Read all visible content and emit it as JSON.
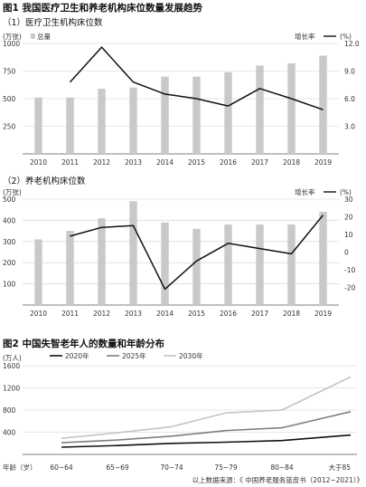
{
  "figure": {
    "title": "图1  我国医疗卫生和养老机构床位数量发展趋势",
    "source": "以上数据来源：《 中国养老服务蓝皮书（2012~2021）》"
  },
  "colors": {
    "bar": "#c9c9c9",
    "line": "#111111",
    "grid": "#cfcfcf",
    "series_2020": "#111111",
    "series_2025": "#7f7f7f",
    "series_2030": "#c4c4c4"
  },
  "chart_data": [
    {
      "type": "bar+line",
      "subtitle": "（1）医疗卫生机构床位数",
      "y_unit_left": "(万张)",
      "bar_legend": "总量",
      "line_legend": "增长率",
      "y_unit_right": "(%)",
      "categories": [
        "2010",
        "2011",
        "2012",
        "2013",
        "2014",
        "2015",
        "2016",
        "2017",
        "2018",
        "2019"
      ],
      "bars": [
        510,
        510,
        590,
        600,
        700,
        700,
        740,
        800,
        820,
        890
      ],
      "line": [
        7.8,
        11.6,
        7.8,
        6.5,
        6.0,
        5.2,
        7.1,
        6.0,
        4.8
      ],
      "line_x_start": 1,
      "ylim_left": [
        0,
        1000
      ],
      "yticks_left": [
        250,
        500,
        750,
        1000
      ],
      "ylim_right": [
        0,
        12
      ],
      "yticks_right": [
        3.0,
        6.0,
        9.0,
        12.0
      ],
      "yticklabels_right": [
        "3.0",
        "6.0",
        "9.0",
        "12.0"
      ]
    },
    {
      "type": "bar+line",
      "subtitle": "（2）养老机构床位数",
      "y_unit_left": "(万张)",
      "line_legend": "增长率",
      "y_unit_right": "(%)",
      "categories": [
        "2010",
        "2011",
        "2012",
        "2013",
        "2014",
        "2015",
        "2016",
        "2017",
        "2018",
        "2019"
      ],
      "bars": [
        310,
        350,
        410,
        490,
        390,
        360,
        380,
        380,
        380,
        440
      ],
      "line": [
        9,
        14,
        15,
        -21,
        -5,
        5,
        2,
        -1,
        21
      ],
      "line_x_start": 1,
      "ylim_left": [
        0,
        500
      ],
      "yticks_left": [
        100,
        200,
        300,
        400,
        500
      ],
      "ylim_right": [
        -30,
        30
      ],
      "yticks_right": [
        -20,
        -10,
        0,
        10,
        20,
        30
      ]
    },
    {
      "type": "line",
      "subtitle": "图2  中国失智老年人的数量和年龄分布",
      "y_unit": "(万人)",
      "xlabel": "年龄（岁）",
      "categories": [
        "60~64",
        "65~69",
        "70~74",
        "75~79",
        "80~84",
        "大于85"
      ],
      "series": [
        {
          "name": "2020年",
          "values": [
            130,
            160,
            200,
            220,
            250,
            350
          ]
        },
        {
          "name": "2025年",
          "values": [
            210,
            260,
            330,
            430,
            480,
            770
          ]
        },
        {
          "name": "2030年",
          "values": [
            290,
            390,
            500,
            750,
            800,
            1400
          ]
        }
      ],
      "ylim": [
        0,
        1600
      ],
      "yticks": [
        400,
        800,
        1200,
        1600
      ]
    }
  ]
}
